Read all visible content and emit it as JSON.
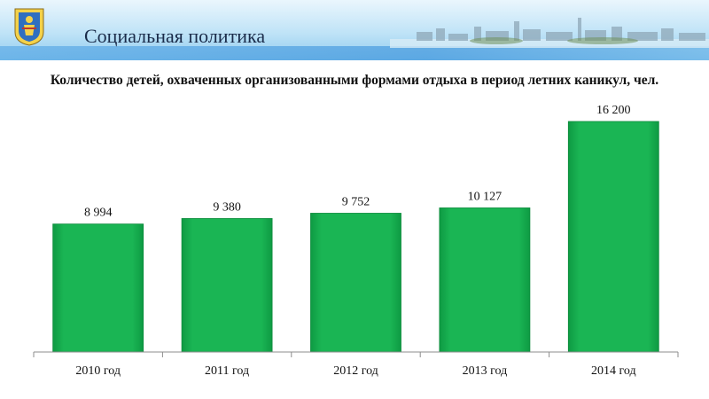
{
  "header": {
    "title": "Социальная политика",
    "logo_icon": "arkhangelsk-coat-of-arms-icon",
    "banner_image": "city-skyline-banner"
  },
  "chart_data": {
    "type": "bar",
    "title": "Количество детей, охваченных организованными формами отдыха в  период летних каникул, чел.",
    "categories": [
      "2010 год",
      "2011 год",
      "2012 год",
      "2013 год",
      "2014 год"
    ],
    "values": [
      8994,
      9380,
      9752,
      10127,
      16200
    ],
    "value_labels": [
      "8 994",
      "9 380",
      "9 752",
      "10 127",
      "16 200"
    ],
    "xlabel": "",
    "ylabel": "",
    "ylim": [
      0,
      16200
    ],
    "grid": false,
    "legend": "none",
    "bar_color": "#1ab554"
  }
}
